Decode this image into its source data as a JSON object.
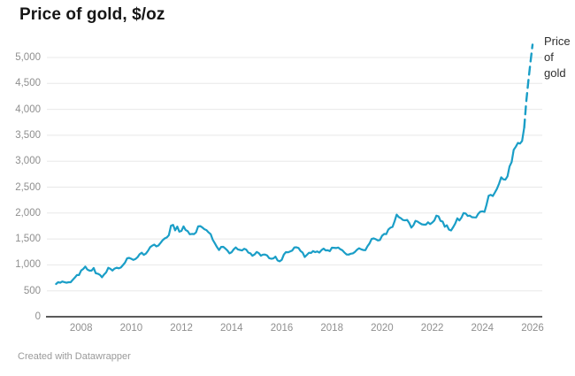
{
  "title": "Price of gold, $/oz",
  "legend": {
    "label": "Price of gold"
  },
  "footer": {
    "credit": "Created with Datawrapper"
  },
  "colors": {
    "line": "#1a9ec7",
    "grid": "#e8e8e8",
    "baseline": "#5a5a5a",
    "axis_text": "#8f8f8f",
    "title_text": "#161616",
    "legend_text": "#2e2e2e",
    "footer_text": "#9a9a9a",
    "background": "#ffffff"
  },
  "chart_data": {
    "type": "line",
    "title": "Price of gold, $/oz",
    "xlabel": "",
    "ylabel": "$/oz",
    "grid": "horizontal",
    "legend_position": "top-right",
    "x_ticks": [
      "2008",
      "2010",
      "2012",
      "2014",
      "2016",
      "2018",
      "2020",
      "2022",
      "2024",
      "2026"
    ],
    "y_ticks": [
      "0",
      "500",
      "1,000",
      "1,500",
      "2,000",
      "2,500",
      "3,000",
      "3,500",
      "4,000",
      "4,500",
      "5,000"
    ],
    "xlim": [
      2006.9,
      2026.2
    ],
    "ylim": [
      0,
      5430
    ],
    "x_start_year": 2007,
    "interval_months": 1,
    "dash_start_index": 224,
    "series": [
      {
        "name": "Price of gold",
        "values": [
          632,
          665,
          655,
          680,
          667,
          655,
          665,
          665,
          713,
          755,
          806,
          803,
          890,
          922,
          968,
          910,
          889,
          889,
          940,
          839,
          830,
          807,
          761,
          816,
          858,
          943,
          924,
          890,
          929,
          946,
          934,
          949,
          997,
          1043,
          1127,
          1135,
          1118,
          1095,
          1113,
          1149,
          1205,
          1233,
          1193,
          1216,
          1271,
          1342,
          1370,
          1391,
          1356,
          1373,
          1424,
          1474,
          1510,
          1529,
          1573,
          1756,
          1772,
          1665,
          1739,
          1640,
          1656,
          1743,
          1674,
          1650,
          1591,
          1597,
          1594,
          1626,
          1744,
          1747,
          1721,
          1688,
          1671,
          1627,
          1593,
          1485,
          1414,
          1343,
          1286,
          1347,
          1348,
          1316,
          1276,
          1221,
          1244,
          1301,
          1336,
          1299,
          1288,
          1279,
          1311,
          1296,
          1238,
          1222,
          1176,
          1201,
          1250,
          1227,
          1178,
          1198,
          1199,
          1181,
          1130,
          1117,
          1125,
          1159,
          1086,
          1068,
          1097,
          1200,
          1246,
          1242,
          1260,
          1276,
          1337,
          1340,
          1326,
          1266,
          1238,
          1152,
          1192,
          1234,
          1231,
          1266,
          1246,
          1260,
          1237,
          1283,
          1314,
          1280,
          1282,
          1264,
          1331,
          1330,
          1325,
          1335,
          1303,
          1281,
          1238,
          1201,
          1198,
          1215,
          1221,
          1250,
          1292,
          1320,
          1301,
          1286,
          1284,
          1359,
          1413,
          1500,
          1511,
          1495,
          1471,
          1479,
          1561,
          1597,
          1592,
          1683,
          1716,
          1732,
          1843,
          1969,
          1922,
          1900,
          1866,
          1858,
          1867,
          1808,
          1718,
          1762,
          1850,
          1835,
          1807,
          1784,
          1776,
          1777,
          1820,
          1787,
          1816,
          1856,
          1948,
          1937,
          1848,
          1837,
          1736,
          1765,
          1681,
          1664,
          1725,
          1797,
          1898,
          1856,
          1913,
          2000,
          1992,
          1943,
          1951,
          1919,
          1916,
          1915,
          1984,
          2026,
          2034,
          2023,
          2160,
          2334,
          2351,
          2327,
          2398,
          2470,
          2568,
          2690,
          2651,
          2644,
          2708,
          2897,
          2984,
          3218,
          3280,
          3353,
          3340,
          3390,
          3650,
          4150,
          4550,
          4900,
          5250
        ]
      }
    ]
  }
}
